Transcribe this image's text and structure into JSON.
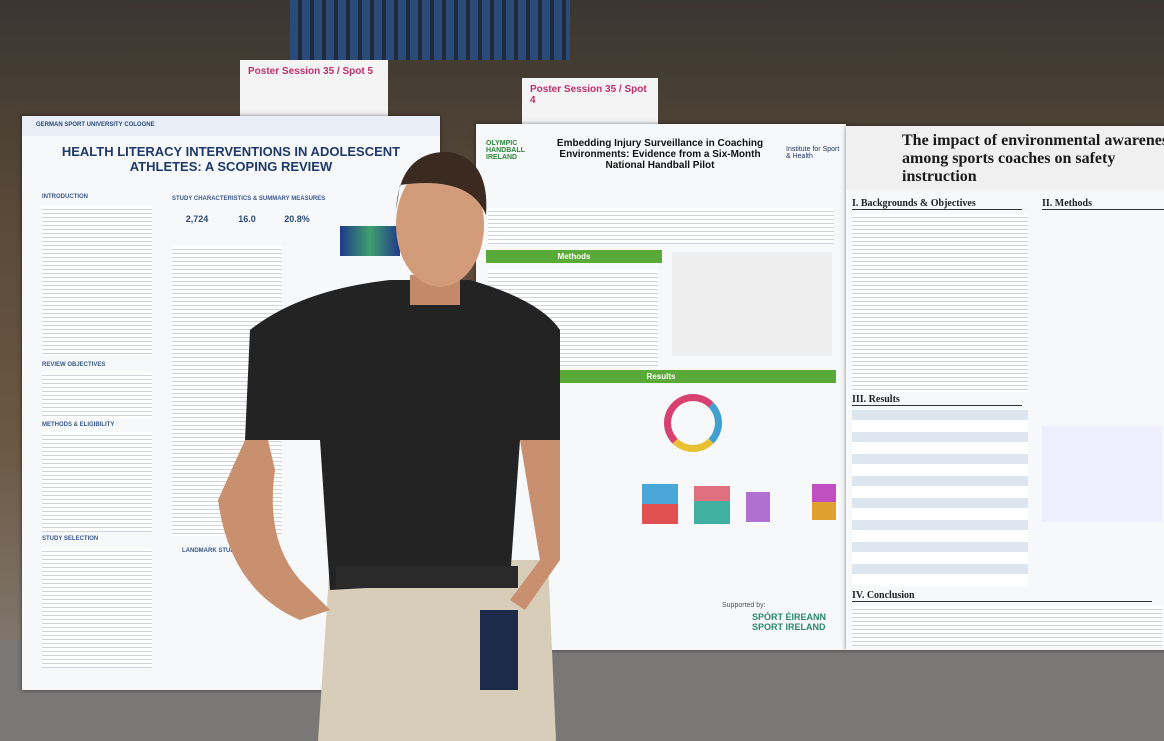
{
  "signs": [
    {
      "session": "Poster Session 35 / Spot 5"
    },
    {
      "session": "Poster Session 35 / Spot 4"
    }
  ],
  "posters": [
    {
      "institution": "GERMAN SPORT UNIVERSITY COLOGNE",
      "title": "HEALTH LITERACY INTERVENTIONS IN ADOLESCENT ATHLETES: A SCOPING REVIEW",
      "sections": [
        "INTRODUCTION",
        "STUDY CHARACTERISTICS & SUMMARY MEASURES",
        "REVIEW OBJECTIVES",
        "METHODS & ELIGIBILITY",
        "STUDY SELECTION",
        "LANDMARK STUDIES"
      ],
      "stats": [
        "2,724",
        "16.0",
        "20.8%"
      ]
    },
    {
      "logo": "OLYMPIC HANDBALL IRELAND",
      "title": "Embedding Injury Surveillance in Coaching Environments: Evidence from a Six-Month National Handball Pilot",
      "partner": "Institute for Sport & Health",
      "sections": [
        "Methods",
        "Results"
      ],
      "supporter": "Supported by:",
      "funder": "SPÓRT ÉIREANN SPORT IRELAND"
    },
    {
      "title": "The impact of environmental awareness among sports coaches on safety instruction",
      "sections": [
        "I. Backgrounds & Objectives",
        "II. Methods",
        "III. Results",
        "IV. Conclusion"
      ]
    }
  ]
}
